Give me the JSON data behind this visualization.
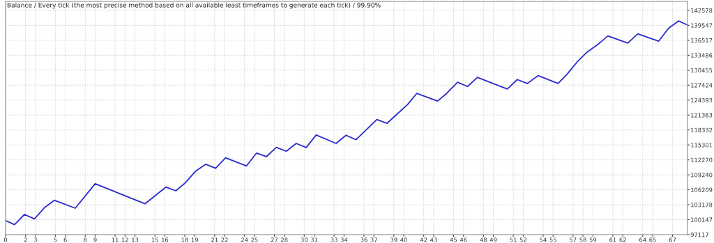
{
  "chart_data": {
    "type": "line",
    "title": "Balance / Every tick (the most precise method based on all available least timeframes to generate each tick) / 99.90%",
    "x": [
      0,
      0.9,
      1.9,
      2.9,
      3.9,
      4.9,
      7.0,
      9.0,
      14.0,
      16.1,
      17.1,
      18.0,
      19.1,
      20.1,
      21.1,
      22.1,
      24.2,
      25.2,
      26.2,
      27.2,
      28.2,
      29.2,
      30.2,
      31.2,
      33.2,
      34.2,
      35.2,
      37.3,
      38.3,
      39.3,
      40.4,
      41.3,
      43.4,
      44.3,
      45.4,
      46.4,
      47.4,
      50.4,
      51.4,
      52.4,
      53.5,
      55.5,
      56.4,
      57.4,
      58.4,
      59.5,
      60.5,
      62.5,
      63.5,
      65.6,
      66.6,
      67.6,
      68.5
    ],
    "series": [
      {
        "color": "#2b2bcc",
        "values": [
          99980,
          99140,
          101210,
          100320,
          102580,
          104080,
          102480,
          107430,
          103370,
          106760,
          106010,
          107520,
          110010,
          111380,
          110570,
          112690,
          111050,
          113640,
          112930,
          114810,
          114020,
          115610,
          114770,
          117310,
          115610,
          117270,
          116360,
          120460,
          119670,
          121500,
          123520,
          125740,
          124190,
          125740,
          128000,
          127150,
          128990,
          126630,
          128560,
          127760,
          129350,
          127760,
          129640,
          132090,
          134110,
          135670,
          137400,
          135950,
          137830,
          136330,
          138960,
          140420,
          139620
        ]
      }
    ],
    "xlim": [
      0,
      68.5
    ],
    "xticks": [
      0,
      2,
      3,
      5,
      6,
      8,
      9,
      11,
      12,
      13,
      15,
      16,
      18,
      19,
      21,
      22,
      24,
      25,
      27,
      28,
      30,
      31,
      33,
      34,
      36,
      37,
      39,
      40,
      42,
      43,
      45,
      46,
      48,
      49,
      51,
      52,
      54,
      55,
      57,
      58,
      59,
      61,
      62,
      64,
      65,
      67
    ],
    "ylim": [
      97117,
      144400
    ],
    "yticks": [
      97117,
      100147,
      103178,
      106209,
      109240,
      112270,
      115301,
      118332,
      121363,
      124393,
      127424,
      130455,
      133486,
      136517,
      139547,
      142578
    ],
    "grid": true,
    "legend": false,
    "marker": "none",
    "line_style": "solid"
  }
}
